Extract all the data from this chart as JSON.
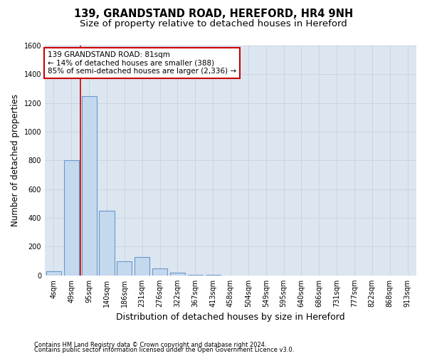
{
  "title_line1": "139, GRANDSTAND ROAD, HEREFORD, HR4 9NH",
  "title_line2": "Size of property relative to detached houses in Hereford",
  "xlabel": "Distribution of detached houses by size in Hereford",
  "ylabel": "Number of detached properties",
  "footnote_line1": "Contains HM Land Registry data © Crown copyright and database right 2024.",
  "footnote_line2": "Contains public sector information licensed under the Open Government Licence v3.0.",
  "bar_labels": [
    "4sqm",
    "49sqm",
    "95sqm",
    "140sqm",
    "186sqm",
    "231sqm",
    "276sqm",
    "322sqm",
    "367sqm",
    "413sqm",
    "458sqm",
    "504sqm",
    "549sqm",
    "595sqm",
    "640sqm",
    "686sqm",
    "731sqm",
    "777sqm",
    "822sqm",
    "868sqm",
    "913sqm"
  ],
  "bar_values": [
    30,
    800,
    1250,
    450,
    100,
    130,
    50,
    20,
    5,
    2,
    1,
    0,
    0,
    0,
    0,
    0,
    0,
    0,
    0,
    0,
    0
  ],
  "bar_color": "#c5d9ee",
  "bar_edge_color": "#6699cc",
  "bar_linewidth": 0.8,
  "grid_color": "#c8d0dc",
  "bg_color": "#dce6f0",
  "ylim": [
    0,
    1600
  ],
  "yticks": [
    0,
    200,
    400,
    600,
    800,
    1000,
    1200,
    1400,
    1600
  ],
  "red_line_color": "#cc0000",
  "red_line_x": 1.5,
  "annotation_text": "139 GRANDSTAND ROAD: 81sqm\n← 14% of detached houses are smaller (388)\n85% of semi-detached houses are larger (2,336) →",
  "annotation_box_color": "#ffffff",
  "annotation_box_edge": "#cc0000",
  "title_fontsize": 10.5,
  "subtitle_fontsize": 9.5,
  "ylabel_fontsize": 8.5,
  "xlabel_fontsize": 9,
  "tick_fontsize": 7,
  "annotation_fontsize": 7.5,
  "footnote_fontsize": 6
}
